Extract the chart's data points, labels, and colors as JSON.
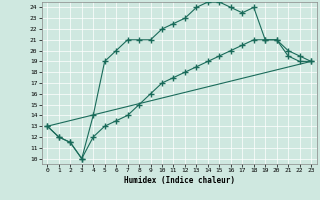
{
  "title": "",
  "xlabel": "Humidex (Indice chaleur)",
  "xlim": [
    -0.5,
    23.5
  ],
  "ylim": [
    9.5,
    24.5
  ],
  "xticks": [
    0,
    1,
    2,
    3,
    4,
    5,
    6,
    7,
    8,
    9,
    10,
    11,
    12,
    13,
    14,
    15,
    16,
    17,
    18,
    19,
    20,
    21,
    22,
    23
  ],
  "yticks": [
    10,
    11,
    12,
    13,
    14,
    15,
    16,
    17,
    18,
    19,
    20,
    21,
    22,
    23,
    24
  ],
  "bg_color": "#cfe8e0",
  "line_color": "#1a6b5a",
  "line1_x": [
    0,
    1,
    2,
    3,
    4,
    5,
    6,
    7,
    8,
    9,
    10,
    11,
    12,
    13,
    14,
    15,
    16,
    17,
    18,
    19,
    20,
    21,
    22,
    23
  ],
  "line1_y": [
    13,
    12,
    11.5,
    10,
    14,
    19,
    20,
    21,
    21,
    21,
    22,
    22.5,
    23,
    24,
    24.5,
    24.5,
    24,
    23.5,
    24,
    21,
    21,
    19.5,
    19,
    19
  ],
  "line2_x": [
    0,
    1,
    2,
    3,
    4,
    5,
    6,
    7,
    8,
    9,
    10,
    11,
    12,
    13,
    14,
    15,
    16,
    17,
    18,
    19,
    20,
    21,
    22,
    23
  ],
  "line2_y": [
    13,
    12,
    11.5,
    10,
    12,
    13,
    13.5,
    14,
    15,
    16,
    17,
    17.5,
    18,
    18.5,
    19,
    19.5,
    20,
    20.5,
    21,
    21,
    21,
    20,
    19.5,
    19
  ],
  "line3_x": [
    0,
    23
  ],
  "line3_y": [
    13,
    19
  ]
}
